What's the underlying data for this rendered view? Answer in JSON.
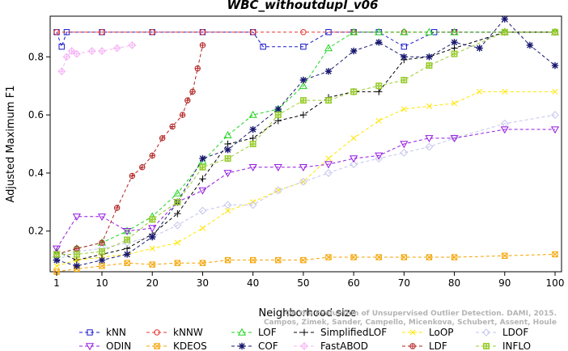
{
  "chart_data": {
    "type": "line",
    "title": "WBC_withoutdupl_v06",
    "xlabel": "Neighborhood size",
    "ylabel": "Adjusted Maximum F1",
    "xlim": [
      1,
      100
    ],
    "ylim": [
      0.06,
      0.94
    ],
    "xticks": [
      1,
      10,
      20,
      30,
      40,
      50,
      60,
      70,
      80,
      90,
      100
    ],
    "yticks": [
      0.2,
      0.4,
      0.6,
      0.8
    ],
    "legend_position": "bottom",
    "watermark": [
      "Campos, Zimek, Sander, Campello, Micenkova, Schubert, Assent, Houle",
      "On the Evaluation of Unsupervised Outlier Detection. DAMI, 2015."
    ],
    "series": [
      {
        "name": "kNN",
        "color": "#1a1acc",
        "marker": "square",
        "x": [
          1,
          2,
          3,
          10,
          20,
          30,
          40,
          42,
          50,
          55,
          60,
          65,
          70,
          76,
          80,
          90,
          100
        ],
        "y": [
          0.885,
          0.835,
          0.885,
          0.885,
          0.885,
          0.885,
          0.885,
          0.835,
          0.835,
          0.885,
          0.885,
          0.885,
          0.835,
          0.885,
          0.885,
          0.885,
          0.885
        ]
      },
      {
        "name": "kNNW",
        "color": "#e8332e",
        "marker": "circle",
        "x": [
          1,
          10,
          20,
          30,
          40,
          50,
          60,
          70,
          80,
          90,
          100
        ],
        "y": [
          0.885,
          0.885,
          0.885,
          0.885,
          0.885,
          0.885,
          0.885,
          0.885,
          0.885,
          0.885,
          0.885
        ]
      },
      {
        "name": "LOF",
        "color": "#1ed41e",
        "marker": "triangle-up",
        "x": [
          1,
          5,
          10,
          15,
          20,
          25,
          30,
          35,
          40,
          45,
          50,
          55,
          60,
          65,
          70,
          75,
          80,
          90,
          100
        ],
        "y": [
          0.12,
          0.14,
          0.16,
          0.2,
          0.25,
          0.33,
          0.44,
          0.53,
          0.6,
          0.62,
          0.7,
          0.83,
          0.885,
          0.885,
          0.885,
          0.885,
          0.885,
          0.885,
          0.885
        ]
      },
      {
        "name": "SimplifiedLOF",
        "color": "#000000",
        "marker": "plus",
        "x": [
          1,
          5,
          10,
          15,
          20,
          25,
          30,
          35,
          40,
          45,
          50,
          55,
          60,
          65,
          70,
          75,
          80,
          90,
          100
        ],
        "y": [
          0.13,
          0.1,
          0.12,
          0.14,
          0.19,
          0.26,
          0.38,
          0.5,
          0.52,
          0.58,
          0.6,
          0.66,
          0.68,
          0.68,
          0.79,
          0.8,
          0.83,
          0.885,
          0.885
        ]
      },
      {
        "name": "LoOP",
        "color": "#ffe600",
        "marker": "x",
        "x": [
          1,
          5,
          10,
          15,
          20,
          25,
          30,
          35,
          40,
          45,
          50,
          55,
          60,
          65,
          70,
          75,
          80,
          85,
          90,
          100
        ],
        "y": [
          0.08,
          0.1,
          0.11,
          0.12,
          0.14,
          0.16,
          0.21,
          0.27,
          0.3,
          0.34,
          0.37,
          0.45,
          0.52,
          0.58,
          0.62,
          0.63,
          0.64,
          0.68,
          0.68,
          0.68
        ]
      },
      {
        "name": "LDOF",
        "color": "#c5c5ee",
        "marker": "diamond",
        "x": [
          1,
          5,
          10,
          15,
          20,
          25,
          30,
          35,
          40,
          45,
          50,
          55,
          60,
          65,
          70,
          75,
          80,
          90,
          100
        ],
        "y": [
          0.1,
          0.13,
          0.14,
          0.16,
          0.18,
          0.22,
          0.27,
          0.29,
          0.29,
          0.34,
          0.37,
          0.4,
          0.43,
          0.45,
          0.47,
          0.49,
          0.52,
          0.57,
          0.6
        ]
      },
      {
        "name": "ODIN",
        "color": "#9419e0",
        "marker": "triangle-down",
        "x": [
          1,
          5,
          10,
          15,
          20,
          25,
          30,
          35,
          40,
          45,
          50,
          55,
          60,
          65,
          70,
          75,
          80,
          90,
          100
        ],
        "y": [
          0.14,
          0.25,
          0.25,
          0.2,
          0.21,
          0.3,
          0.34,
          0.4,
          0.42,
          0.42,
          0.42,
          0.43,
          0.45,
          0.46,
          0.5,
          0.52,
          0.52,
          0.55,
          0.55
        ]
      },
      {
        "name": "KDEOS",
        "color": "#f5a300",
        "marker": "square-x",
        "x": [
          1,
          5,
          10,
          15,
          20,
          25,
          30,
          35,
          40,
          45,
          50,
          55,
          60,
          65,
          70,
          75,
          80,
          90,
          100
        ],
        "y": [
          0.06,
          0.07,
          0.08,
          0.09,
          0.085,
          0.09,
          0.09,
          0.1,
          0.1,
          0.1,
          0.1,
          0.11,
          0.11,
          0.11,
          0.11,
          0.11,
          0.11,
          0.115,
          0.12
        ]
      },
      {
        "name": "COF",
        "color": "#191970",
        "marker": "asterisk",
        "x": [
          1,
          5,
          10,
          15,
          20,
          25,
          30,
          35,
          40,
          45,
          50,
          55,
          60,
          65,
          70,
          75,
          80,
          85,
          90,
          95,
          100
        ],
        "y": [
          0.1,
          0.08,
          0.1,
          0.12,
          0.18,
          0.3,
          0.45,
          0.48,
          0.55,
          0.62,
          0.72,
          0.75,
          0.82,
          0.85,
          0.8,
          0.8,
          0.85,
          0.83,
          0.93,
          0.84,
          0.77
        ]
      },
      {
        "name": "FastABOD",
        "color": "#f5b4f5",
        "marker": "diamond-plus",
        "x": [
          2,
          3,
          4,
          5,
          8,
          10,
          13,
          16
        ],
        "y": [
          0.75,
          0.8,
          0.82,
          0.81,
          0.82,
          0.82,
          0.83,
          0.84
        ]
      },
      {
        "name": "LDF",
        "color": "#b22222",
        "marker": "circle-plus",
        "x": [
          1,
          5,
          10,
          13,
          16,
          18,
          20,
          22,
          24,
          26,
          27,
          28,
          29,
          30
        ],
        "y": [
          0.12,
          0.14,
          0.16,
          0.28,
          0.39,
          0.42,
          0.46,
          0.52,
          0.56,
          0.6,
          0.65,
          0.68,
          0.76,
          0.84
        ]
      },
      {
        "name": "INFLO",
        "color": "#9acd32",
        "marker": "square-cross",
        "x": [
          1,
          5,
          10,
          15,
          20,
          25,
          30,
          35,
          40,
          45,
          50,
          55,
          60,
          65,
          70,
          75,
          80,
          90,
          100
        ],
        "y": [
          0.12,
          0.12,
          0.13,
          0.17,
          0.24,
          0.3,
          0.42,
          0.45,
          0.5,
          0.6,
          0.65,
          0.65,
          0.68,
          0.7,
          0.72,
          0.77,
          0.81,
          0.885,
          0.885
        ]
      }
    ]
  }
}
